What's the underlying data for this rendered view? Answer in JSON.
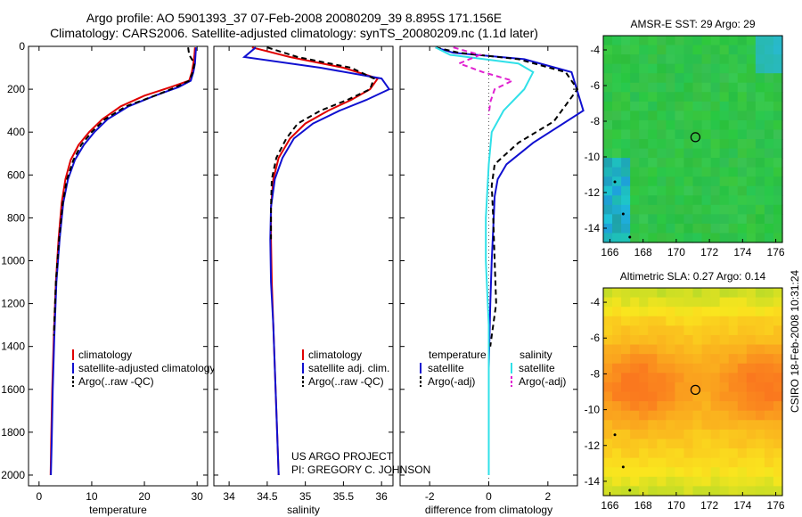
{
  "header": {
    "line1": "Argo profile: AO 5901393_37 07-Feb-2008 20080209_39 8.895S 171.156E",
    "line2": "Climatology: CARS2006. Satellite-adjusted climatology: synTS_20080209.nc (1.1d later)"
  },
  "depth_axis": {
    "ticks": [
      0,
      200,
      400,
      600,
      800,
      1000,
      1200,
      1400,
      1600,
      1800,
      2000
    ],
    "range": [
      0,
      2050
    ]
  },
  "credit": {
    "line1": "US ARGO PROJECT",
    "line2": "PI: GREGORY C. JOHNSON"
  },
  "stamp": "CSIRO 18-Feb-2008 10:31:24",
  "colors": {
    "red": "#e00000",
    "blue": "#1010d0",
    "black": "#000000",
    "cyan": "#30e0e8",
    "magenta": "#e020d0"
  },
  "chart_data": [
    {
      "type": "line",
      "id": "temperature",
      "xlabel": "temperature",
      "xticks": [
        0,
        10,
        20,
        30
      ],
      "xlim": [
        -2,
        32
      ],
      "ylim": [
        2050,
        0
      ],
      "legend": [
        "climatology",
        "satellite-adjusted climatology",
        "Argo(..raw -QC)"
      ],
      "series": [
        {
          "name": "climatology",
          "color": "red",
          "dash": false,
          "x": [
            29.6,
            29.5,
            29.3,
            29.0,
            28.5,
            25.0,
            20.0,
            15.5,
            12.0,
            9.5,
            7.5,
            6.0,
            5.0,
            4.3,
            3.7,
            3.2,
            2.8,
            2.5,
            2.3,
            2.2
          ],
          "y": [
            5,
            40,
            80,
            120,
            160,
            190,
            230,
            280,
            340,
            400,
            460,
            530,
            620,
            730,
            900,
            1100,
            1350,
            1600,
            1850,
            2000
          ]
        },
        {
          "name": "satellite-adjusted climatology",
          "color": "blue",
          "dash": false,
          "x": [
            29.8,
            29.7,
            29.6,
            29.3,
            28.8,
            26.5,
            22.0,
            17.0,
            13.0,
            10.5,
            8.5,
            6.8,
            5.5,
            4.6,
            3.9,
            3.3,
            2.9,
            2.6,
            2.4,
            2.25
          ],
          "y": [
            5,
            40,
            80,
            120,
            160,
            190,
            230,
            280,
            340,
            400,
            460,
            530,
            620,
            730,
            900,
            1100,
            1350,
            1600,
            1850,
            2000
          ]
        },
        {
          "name": "Argo(..raw -QC)",
          "color": "black",
          "dash": true,
          "x": [
            28.3,
            28.5,
            29.5,
            29.2,
            28.5,
            26.0,
            22.0,
            16.5,
            12.5,
            10.0,
            8.0,
            6.5,
            5.3,
            4.5,
            3.8,
            3.2,
            2.8
          ],
          "y": [
            5,
            40,
            80,
            120,
            160,
            190,
            230,
            280,
            340,
            400,
            460,
            530,
            620,
            730,
            900,
            1100,
            1350
          ]
        }
      ]
    },
    {
      "type": "line",
      "id": "salinity",
      "xlabel": "salinity",
      "xticks": [
        34,
        34.5,
        35,
        35.5,
        36
      ],
      "xlim": [
        33.8,
        36.15
      ],
      "ylim": [
        2050,
        0
      ],
      "legend": [
        "climatology",
        "satellite adj. clim.",
        "Argo(..raw -QC)"
      ],
      "series": [
        {
          "name": "climatology",
          "color": "red",
          "dash": false,
          "x": [
            34.3,
            34.8,
            35.5,
            35.95,
            35.85,
            35.6,
            35.3,
            35.0,
            34.8,
            34.65,
            34.58,
            34.55,
            34.55,
            34.56,
            34.58,
            34.6,
            34.63,
            34.65
          ],
          "y": [
            5,
            50,
            100,
            150,
            200,
            250,
            300,
            360,
            430,
            520,
            620,
            750,
            900,
            1100,
            1300,
            1500,
            1800,
            2000
          ]
        },
        {
          "name": "satellite adj. clim.",
          "color": "blue",
          "dash": false,
          "x": [
            34.35,
            34.2,
            35.2,
            36.0,
            36.1,
            35.8,
            35.45,
            35.1,
            34.85,
            34.7,
            34.6,
            34.55,
            34.54,
            34.55,
            34.58,
            34.6,
            34.63,
            34.65
          ],
          "y": [
            5,
            50,
            100,
            150,
            200,
            250,
            300,
            360,
            430,
            520,
            620,
            750,
            900,
            1100,
            1300,
            1500,
            1800,
            2000
          ]
        },
        {
          "name": "Argo(..raw -QC)",
          "color": "black",
          "dash": true,
          "x": [
            34.5,
            34.9,
            35.6,
            35.9,
            35.85,
            35.55,
            35.2,
            34.9,
            34.75,
            34.62,
            34.56,
            34.55,
            34.55
          ],
          "y": [
            5,
            50,
            100,
            150,
            200,
            250,
            300,
            360,
            430,
            520,
            620,
            750,
            900
          ]
        }
      ]
    },
    {
      "type": "line",
      "id": "difference",
      "xlabel": "difference from climatology",
      "xticks": [
        -2,
        0,
        2
      ],
      "xlim": [
        -3,
        3
      ],
      "ylim": [
        2050,
        0
      ],
      "legend_left": {
        "title": "temperature",
        "items": [
          "satellite",
          "Argo(-adj)"
        ]
      },
      "legend_right": {
        "title": "salinity",
        "items": [
          "satellite",
          "Argo(-adj)"
        ]
      },
      "series": [
        {
          "name": "temperature satellite",
          "color": "blue",
          "dash": false,
          "x": [
            -1.8,
            -1.2,
            1.2,
            2.8,
            3.2,
            1.5,
            0.6,
            0.3,
            0.2,
            0.15,
            0.1,
            0.05,
            0.0,
            0.0,
            0.0
          ],
          "y": [
            5,
            30,
            60,
            120,
            300,
            450,
            550,
            620,
            700,
            850,
            1000,
            1200,
            1500,
            1800,
            2000
          ]
        },
        {
          "name": "temperature Argo(-adj)",
          "color": "black",
          "dash": true,
          "x": [
            -1.8,
            -1.0,
            1.0,
            2.6,
            3.0,
            2.2,
            1.0,
            0.2,
            0.1,
            0.15,
            0.2,
            0.25,
            0.15,
            0.1,
            0.05
          ],
          "y": [
            5,
            30,
            60,
            120,
            200,
            350,
            450,
            550,
            650,
            800,
            1000,
            1200,
            1300,
            1350,
            1400
          ]
        },
        {
          "name": "salinity satellite",
          "color": "cyan",
          "dash": false,
          "x": [
            -1.8,
            -1.3,
            1.0,
            1.5,
            1.2,
            0.5,
            0.1,
            0.0,
            -0.1,
            -0.1,
            -0.05,
            0.0,
            0.0
          ],
          "y": [
            5,
            40,
            80,
            120,
            200,
            300,
            400,
            550,
            800,
            1000,
            1150,
            1300,
            2000
          ]
        },
        {
          "name": "salinity Argo(-adj)",
          "color": "magenta",
          "dash": true,
          "x": [
            -1.2,
            -0.3,
            -1.0,
            -0.2,
            0.8,
            0.2,
            0.05,
            0.0
          ],
          "y": [
            5,
            40,
            80,
            120,
            160,
            200,
            260,
            320
          ]
        }
      ]
    },
    {
      "type": "heatmap",
      "id": "sst",
      "title": "AMSR-E SST: 29 Argo: 29",
      "xticks": [
        166,
        168,
        170,
        172,
        174,
        176
      ],
      "yticks": [
        -4,
        -6,
        -8,
        -10,
        -12,
        -14
      ],
      "xlim": [
        165.6,
        176.4
      ],
      "ylim": [
        -14.8,
        -3.2
      ],
      "marker": {
        "lon": 171.156,
        "lat": -8.895
      }
    },
    {
      "type": "heatmap",
      "id": "sla",
      "title": "Altimetric SLA: 0.27 Argo: 0.14",
      "xticks": [
        166,
        168,
        170,
        172,
        174,
        176
      ],
      "yticks": [
        -4,
        -6,
        -8,
        -10,
        -12,
        -14
      ],
      "xlim": [
        165.6,
        176.4
      ],
      "ylim": [
        -14.8,
        -3.2
      ],
      "marker": {
        "lon": 171.156,
        "lat": -8.895
      }
    }
  ]
}
